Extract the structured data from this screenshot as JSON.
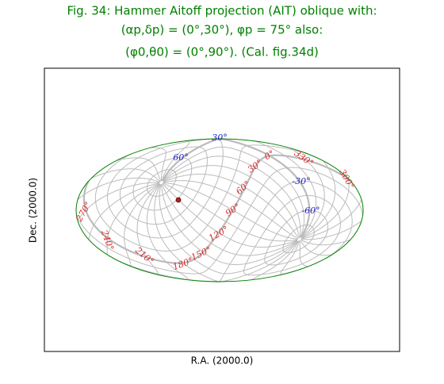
{
  "header": {
    "title": "Fig. 34: Hammer Aitoff projection (AIT) oblique with:",
    "subtitle_1": "(αp,δp) = (0°,30°), φp = 75° also:",
    "subtitle_2": "(φ0,θ0) = (0°,90°). (Cal. fig.34d)"
  },
  "axes": {
    "xlabel": "R.A. (2000.0)",
    "ylabel": "Dec. (2000.0)"
  },
  "meridian_labels": [
    "0°",
    "30°",
    "60°",
    "90°",
    "120°",
    "150°",
    "180°",
    "210°",
    "240°",
    "270°",
    "300°",
    "330°"
  ],
  "parallel_labels": [
    "30°",
    "60°",
    "-30°",
    "-60°"
  ]
}
